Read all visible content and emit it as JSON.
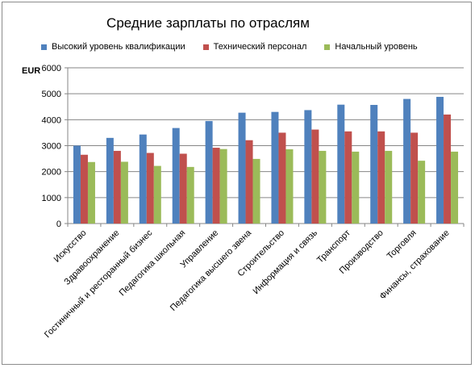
{
  "chart_data": {
    "type": "bar",
    "title": "Средние зарплаты по отраслям",
    "ylabel": "EUR",
    "xlabel": "",
    "ylim": [
      0,
      6000
    ],
    "yticks": [
      0,
      1000,
      2000,
      3000,
      4000,
      5000,
      6000
    ],
    "grid": true,
    "legend_position": "top",
    "categories": [
      "Искусство",
      "Здравоохранение",
      "Гостиничный и ресторанный бизнес",
      "Педагогика школьная",
      "Управление",
      "Педагогика высшего звена",
      "Строительство",
      "Информация и связь",
      "Транспорт",
      "Производство",
      "Торговля",
      "Финансы, страхование"
    ],
    "series": [
      {
        "name": "Высокий уровень квалификации",
        "color": "#4f81bd",
        "values": [
          3000,
          3300,
          3430,
          3680,
          3950,
          4270,
          4300,
          4370,
          4580,
          4570,
          4800,
          4880
        ]
      },
      {
        "name": "Технический персонал",
        "color": "#c0504d",
        "values": [
          2650,
          2800,
          2720,
          2690,
          2920,
          3210,
          3500,
          3620,
          3550,
          3550,
          3500,
          4200
        ]
      },
      {
        "name": "Начальный уровень",
        "color": "#9bbb59",
        "values": [
          2370,
          2380,
          2220,
          2180,
          2870,
          2490,
          2860,
          2800,
          2770,
          2800,
          2420,
          2770
        ]
      }
    ]
  }
}
